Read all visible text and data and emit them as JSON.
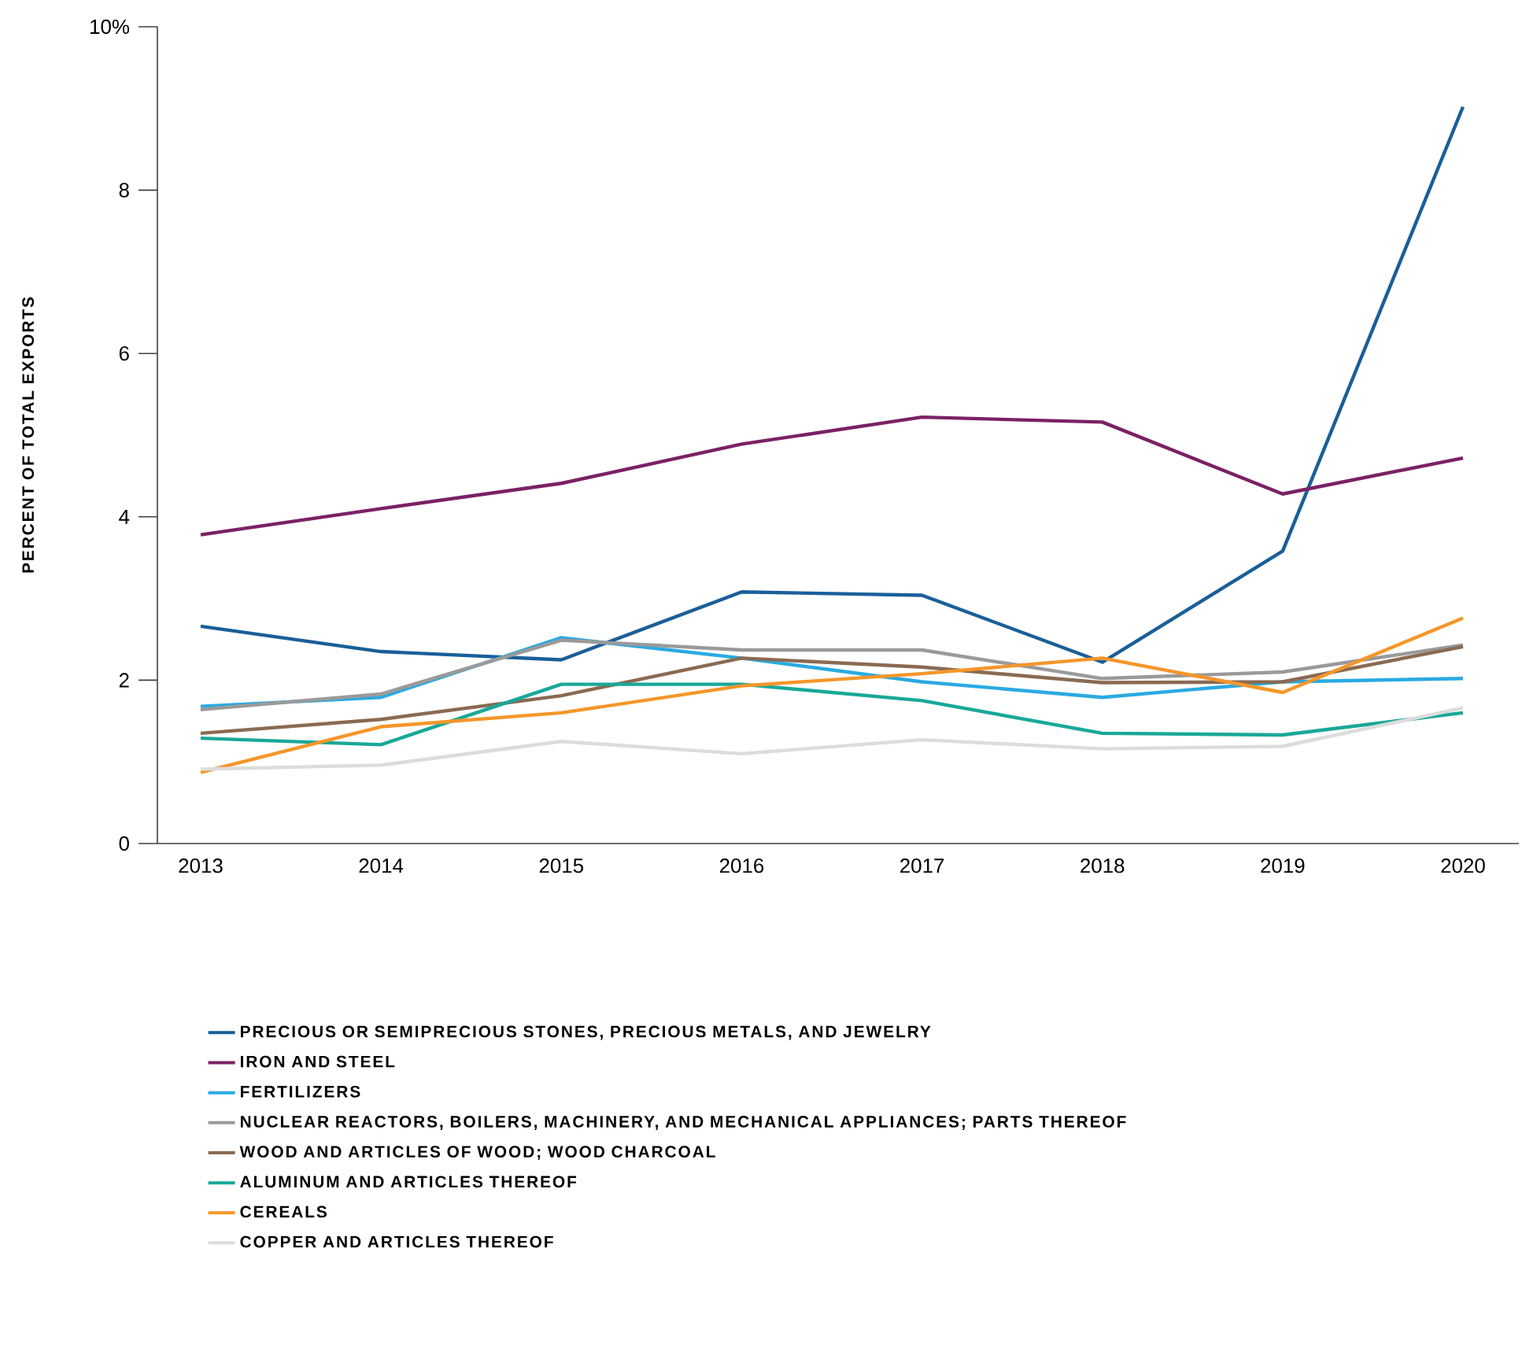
{
  "chart_data": {
    "type": "line",
    "ylabel": "PERCENT OF TOTAL EXPORTS",
    "categories": [
      "2013",
      "2014",
      "2015",
      "2016",
      "2017",
      "2018",
      "2019",
      "2020"
    ],
    "ylim": [
      0,
      10
    ],
    "yticks": [
      0,
      2,
      4,
      6,
      8,
      {
        "value": 10,
        "label": "10%"
      }
    ],
    "legend": "bottom",
    "marker": "none",
    "line_style": "solid",
    "series": [
      {
        "name": "PRECIOUS OR SEMIPRECIOUS STONES, PRECIOUS METALS, AND JEWELRY",
        "color": "#1a5f99",
        "values": [
          2.66,
          2.35,
          2.25,
          3.08,
          3.04,
          2.22,
          3.58,
          9.02
        ]
      },
      {
        "name": "IRON AND STEEL",
        "color": "#7b2164",
        "values": [
          3.78,
          4.1,
          4.41,
          4.89,
          5.22,
          5.16,
          4.28,
          4.72
        ]
      },
      {
        "name": "FERTILIZERS",
        "color": "#2aaae2",
        "values": [
          1.68,
          1.79,
          2.52,
          2.27,
          1.98,
          1.79,
          1.98,
          2.02
        ]
      },
      {
        "name": "NUCLEAR REACTORS, BOILERS, MACHINERY, AND MECHANICAL APPLIANCES; PARTS THEREOF",
        "color": "#9a9a9a",
        "values": [
          1.64,
          1.83,
          2.49,
          2.37,
          2.37,
          2.02,
          2.1,
          2.43
        ]
      },
      {
        "name": "WOOD AND ARTICLES OF WOOD; WOOD CHARCOAL",
        "color": "#8a6a52",
        "values": [
          1.35,
          1.52,
          1.81,
          2.27,
          2.16,
          1.97,
          1.98,
          2.41
        ]
      },
      {
        "name": "ALUMINUM AND ARTICLES THEREOF",
        "color": "#19a899",
        "values": [
          1.29,
          1.21,
          1.95,
          1.95,
          1.75,
          1.35,
          1.33,
          1.6
        ]
      },
      {
        "name": "CEREALS",
        "color": "#f5962a",
        "values": [
          0.87,
          1.43,
          1.6,
          1.93,
          2.08,
          2.27,
          1.85,
          2.76
        ]
      },
      {
        "name": "COPPER AND ARTICLES THEREOF",
        "color": "#dcdcdc",
        "values": [
          0.91,
          0.96,
          1.25,
          1.1,
          1.27,
          1.16,
          1.19,
          1.66
        ]
      }
    ]
  }
}
